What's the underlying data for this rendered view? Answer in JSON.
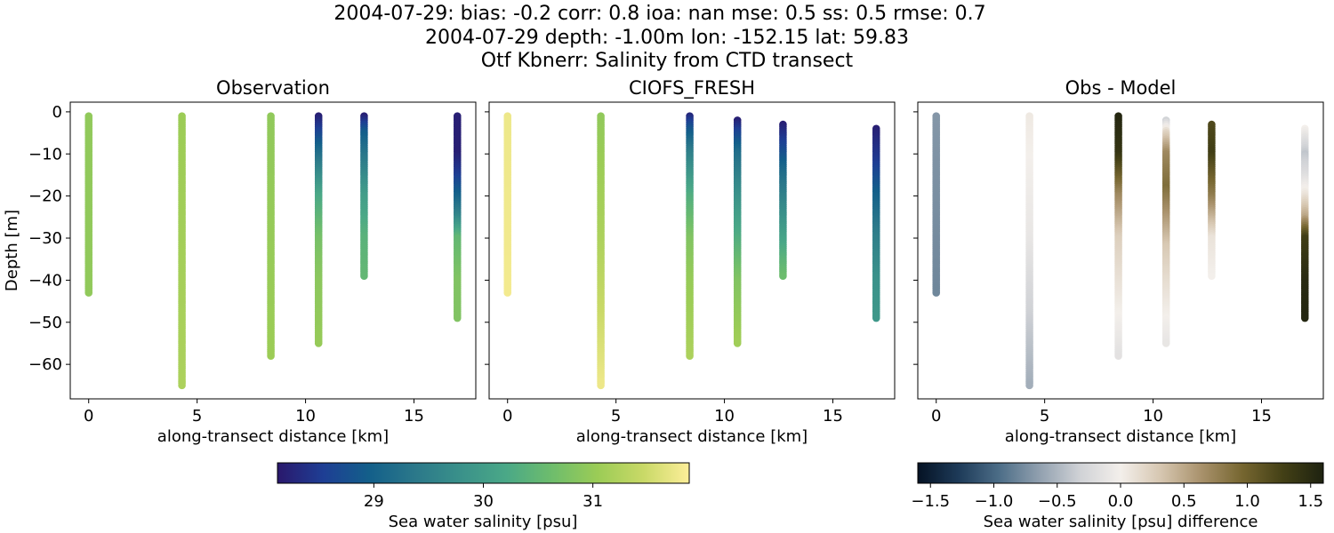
{
  "suptitle": [
    "2004-07-29: bias: -0.2  corr: 0.8  ioa: nan  mse: 0.5  ss: 0.5  rmse: 0.7",
    "2004-07-29 depth: -1.00m lon: -152.15 lat: 59.83",
    "Otf Kbnerr: Salinity from CTD transect"
  ],
  "chart_data": [
    {
      "type": "scatter",
      "title": "Observation",
      "xlabel": "along-transect distance [km]",
      "ylabel": "Depth [m]",
      "xlim": [
        -0.85,
        17.85
      ],
      "ylim": [
        -68.2,
        2.3
      ],
      "xticks": [
        0,
        5,
        10,
        15
      ],
      "yticks": [
        0,
        -10,
        -20,
        -30,
        -40,
        -50,
        -60
      ],
      "yticklabels": [
        "0",
        "−10",
        "−20",
        "−30",
        "−40",
        "−50",
        "−60"
      ],
      "colormap": "haline",
      "profiles": [
        {
          "x": 0.0,
          "depth_top": -1,
          "depth_bottom": -43,
          "anchors": [
            [
              -1,
              30.95
            ],
            [
              -43,
              30.95
            ]
          ]
        },
        {
          "x": 4.3,
          "depth_top": -1,
          "depth_bottom": -65,
          "anchors": [
            [
              -1,
              31.05
            ],
            [
              -65,
              31.2
            ]
          ]
        },
        {
          "x": 8.4,
          "depth_top": -1,
          "depth_bottom": -58,
          "anchors": [
            [
              -1,
              30.95
            ],
            [
              -58,
              31.05
            ]
          ]
        },
        {
          "x": 10.6,
          "depth_top": -1,
          "depth_bottom": -55,
          "anchors": [
            [
              -1,
              28.2
            ],
            [
              -4,
              28.5
            ],
            [
              -10,
              29.2
            ],
            [
              -20,
              30.2
            ],
            [
              -30,
              30.7
            ],
            [
              -40,
              30.9
            ],
            [
              -55,
              31.0
            ]
          ]
        },
        {
          "x": 12.7,
          "depth_top": -1,
          "depth_bottom": -39,
          "anchors": [
            [
              -1,
              28.2
            ],
            [
              -5,
              28.9
            ],
            [
              -10,
              29.3
            ],
            [
              -20,
              30.0
            ],
            [
              -30,
              30.4
            ],
            [
              -39,
              30.5
            ]
          ]
        },
        {
          "x": 17.0,
          "depth_top": -1,
          "depth_bottom": -49,
          "anchors": [
            [
              -1,
              28.2
            ],
            [
              -10,
              28.2
            ],
            [
              -15,
              28.5
            ],
            [
              -20,
              29.0
            ],
            [
              -25,
              29.6
            ],
            [
              -30,
              30.5
            ],
            [
              -40,
              30.8
            ],
            [
              -49,
              30.8
            ]
          ]
        }
      ]
    },
    {
      "type": "scatter",
      "title": "CIOFS_FRESH",
      "xlabel": "along-transect distance [km]",
      "ylabel": "",
      "xlim": [
        -0.85,
        17.85
      ],
      "ylim": [
        -68.2,
        2.3
      ],
      "xticks": [
        0,
        5,
        10,
        15
      ],
      "yticks": [
        0,
        -10,
        -20,
        -30,
        -40,
        -50,
        -60
      ],
      "yticklabels": [],
      "colormap": "haline",
      "profiles": [
        {
          "x": 0.0,
          "depth_top": -1,
          "depth_bottom": -43,
          "anchors": [
            [
              -1,
              31.75
            ],
            [
              -43,
              31.8
            ]
          ]
        },
        {
          "x": 4.3,
          "depth_top": -1,
          "depth_bottom": -65,
          "anchors": [
            [
              -1,
              30.95
            ],
            [
              -30,
              31.2
            ],
            [
              -50,
              31.5
            ],
            [
              -65,
              31.75
            ]
          ]
        },
        {
          "x": 8.4,
          "depth_top": -1,
          "depth_bottom": -58,
          "anchors": [
            [
              -1,
              28.3
            ],
            [
              -4,
              28.8
            ],
            [
              -10,
              29.5
            ],
            [
              -20,
              30.3
            ],
            [
              -30,
              30.8
            ],
            [
              -40,
              31.0
            ],
            [
              -58,
              31.2
            ]
          ]
        },
        {
          "x": 10.6,
          "depth_top": -2,
          "depth_bottom": -55,
          "anchors": [
            [
              -2,
              28.2
            ],
            [
              -5,
              28.6
            ],
            [
              -10,
              29.2
            ],
            [
              -20,
              29.8
            ],
            [
              -30,
              30.3
            ],
            [
              -40,
              30.8
            ],
            [
              -55,
              31.1
            ]
          ]
        },
        {
          "x": 12.7,
          "depth_top": -3,
          "depth_bottom": -39,
          "anchors": [
            [
              -3,
              28.2
            ],
            [
              -8,
              28.6
            ],
            [
              -15,
              29.2
            ],
            [
              -25,
              29.8
            ],
            [
              -35,
              30.4
            ],
            [
              -39,
              30.6
            ]
          ]
        },
        {
          "x": 17.0,
          "depth_top": -4,
          "depth_bottom": -49,
          "anchors": [
            [
              -4,
              28.2
            ],
            [
              -12,
              28.5
            ],
            [
              -20,
              29.0
            ],
            [
              -30,
              29.5
            ],
            [
              -40,
              29.8
            ],
            [
              -49,
              29.9
            ]
          ]
        }
      ]
    },
    {
      "type": "scatter",
      "title": "Obs - Model",
      "xlabel": "along-transect distance [km]",
      "ylabel": "",
      "xlim": [
        -0.85,
        17.85
      ],
      "ylim": [
        -68.2,
        2.3
      ],
      "xticks": [
        0,
        5,
        10,
        15
      ],
      "yticks": [
        0,
        -10,
        -20,
        -30,
        -40,
        -50,
        -60
      ],
      "yticklabels": [],
      "colormap": "diff",
      "profiles": [
        {
          "x": 0.0,
          "depth_top": -1,
          "depth_bottom": -43,
          "anchors": [
            [
              -1,
              -0.7
            ],
            [
              -43,
              -0.8
            ]
          ]
        },
        {
          "x": 4.3,
          "depth_top": -1,
          "depth_bottom": -65,
          "anchors": [
            [
              -1,
              0.05
            ],
            [
              -30,
              -0.1
            ],
            [
              -50,
              -0.35
            ],
            [
              -65,
              -0.55
            ]
          ]
        },
        {
          "x": 8.4,
          "depth_top": -1,
          "depth_bottom": -58,
          "anchors": [
            [
              -1,
              1.55
            ],
            [
              -10,
              1.4
            ],
            [
              -20,
              0.7
            ],
            [
              -30,
              0.25
            ],
            [
              -45,
              0.05
            ],
            [
              -58,
              -0.15
            ]
          ]
        },
        {
          "x": 10.6,
          "depth_top": -2,
          "depth_bottom": -55,
          "anchors": [
            [
              -2,
              -0.3
            ],
            [
              -5,
              0.2
            ],
            [
              -10,
              0.7
            ],
            [
              -18,
              0.9
            ],
            [
              -25,
              0.6
            ],
            [
              -32,
              0.3
            ],
            [
              -40,
              0.15
            ],
            [
              -55,
              -0.1
            ]
          ]
        },
        {
          "x": 12.7,
          "depth_top": -3,
          "depth_bottom": -39,
          "anchors": [
            [
              -3,
              1.2
            ],
            [
              -10,
              1.3
            ],
            [
              -20,
              0.8
            ],
            [
              -30,
              0.1
            ],
            [
              -39,
              0.0
            ]
          ]
        },
        {
          "x": 17.0,
          "depth_top": -4,
          "depth_bottom": -49,
          "anchors": [
            [
              -4,
              0.0
            ],
            [
              -10,
              -0.4
            ],
            [
              -15,
              -0.2
            ],
            [
              -20,
              0.1
            ],
            [
              -25,
              0.5
            ],
            [
              -30,
              1.3
            ],
            [
              -40,
              1.5
            ],
            [
              -49,
              1.55
            ]
          ]
        }
      ]
    }
  ],
  "colorbars": {
    "salinity": {
      "label": "Sea water salinity [psu]",
      "range": [
        28.12,
        31.88
      ],
      "ticks": [
        29,
        30,
        31
      ],
      "ticklabels": [
        "29",
        "30",
        "31"
      ]
    },
    "difference": {
      "label": "Sea water salinity [psu] difference",
      "range": [
        -1.6,
        1.6
      ],
      "ticks": [
        -1.5,
        -1.0,
        -0.5,
        0.0,
        0.5,
        1.0,
        1.5
      ],
      "ticklabels": [
        "−1.5",
        "−1.0",
        "−0.5",
        "0.0",
        "0.5",
        "1.0",
        "1.5"
      ]
    }
  },
  "colormaps": {
    "haline": [
      "#2a186c",
      "#1e3e94",
      "#135f8a",
      "#2b788a",
      "#3a918a",
      "#4aa887",
      "#6ebd6c",
      "#9bcc56",
      "#c9d967",
      "#fdee99"
    ],
    "diff": [
      "#051224",
      "#1d3a58",
      "#4c6d87",
      "#91a0af",
      "#d0d2d6",
      "#f3efeb",
      "#d6c6b0",
      "#a8916b",
      "#766630",
      "#434016",
      "#1e2210"
    ]
  }
}
